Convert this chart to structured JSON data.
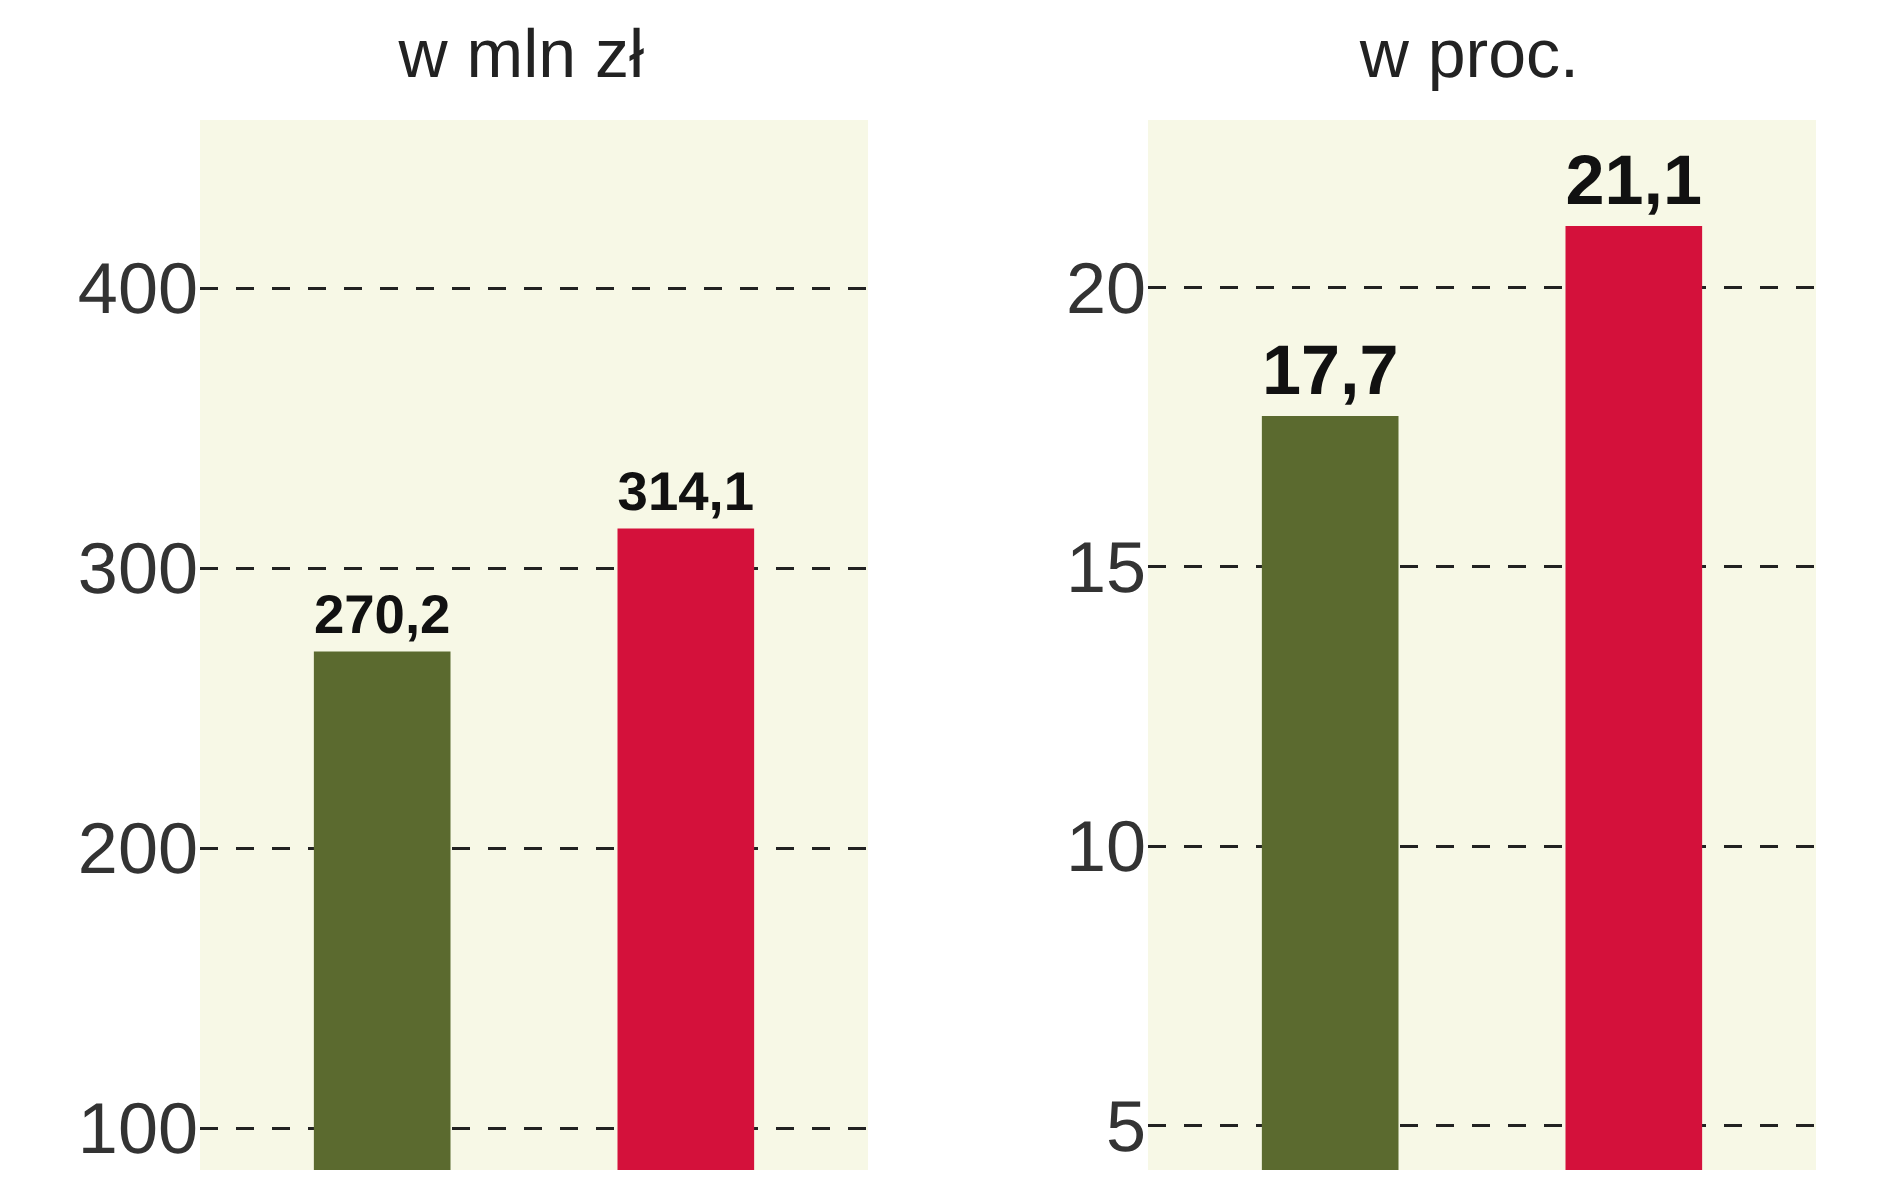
{
  "chart_data": [
    {
      "type": "bar",
      "title": "w mln zł",
      "categories": [
        null,
        null
      ],
      "values": [
        270.2,
        314.1
      ],
      "value_labels": [
        "270,2",
        "314,1"
      ],
      "colors": [
        "#5b6a2f",
        "#d4113b"
      ],
      "ylim": [
        85,
        460
      ],
      "yticks": [
        100,
        200,
        300,
        400
      ],
      "grid": "y",
      "legend": false
    },
    {
      "type": "bar",
      "title": "w proc.",
      "categories": [
        null,
        null
      ],
      "values": [
        17.7,
        21.1
      ],
      "value_labels": [
        "17,7",
        "21,1"
      ],
      "colors": [
        "#5b6a2f",
        "#d4113b"
      ],
      "ylim": [
        4.2,
        23
      ],
      "yticks": [
        5,
        10,
        15,
        20
      ],
      "grid": "y",
      "legend": false
    }
  ]
}
